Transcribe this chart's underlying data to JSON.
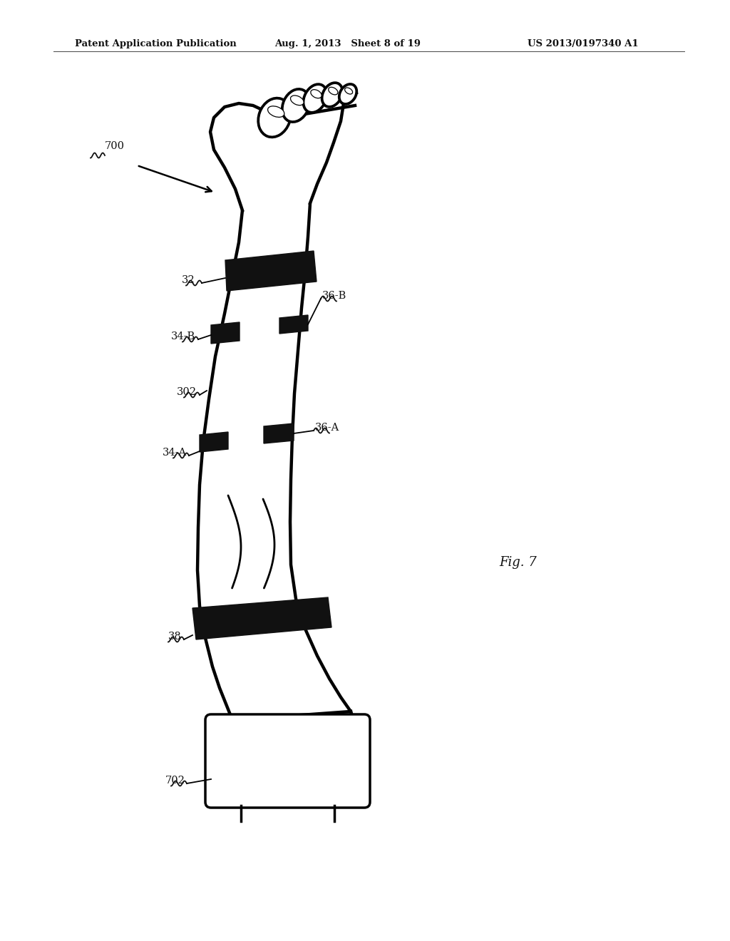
{
  "bg_color": "#ffffff",
  "header_left": "Patent Application Publication",
  "header_mid": "Aug. 1, 2013   Sheet 8 of 19",
  "header_right": "US 2013/0197340 A1",
  "fig_label": "Fig. 7",
  "label_700": "700",
  "label_32": "32",
  "label_34B": "34-B",
  "label_302": "302",
  "label_34A": "34-A",
  "label_38": "38",
  "label_702": "702",
  "label_36B": "36-B",
  "label_36A": "36-A",
  "line_color": "#000000",
  "cuff_color": "#111111",
  "lw_body": 3.2
}
